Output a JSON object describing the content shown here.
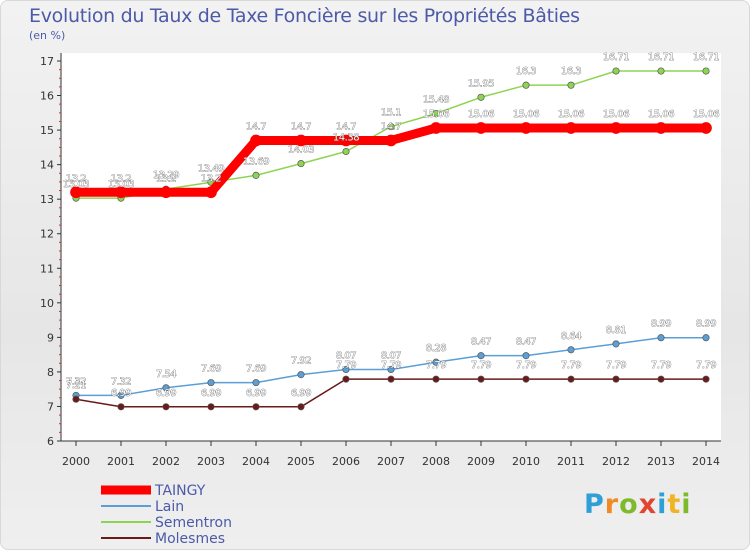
{
  "chart_data": {
    "type": "line",
    "title": "Evolution du Taux de Taxe Foncière sur les Propriétés Bâties",
    "subtitle": "(en %)",
    "xlabel": "",
    "ylabel": "",
    "x": [
      "2000",
      "2001",
      "2002",
      "2003",
      "2004",
      "2005",
      "2006",
      "2007",
      "2008",
      "2009",
      "2010",
      "2011",
      "2012",
      "2013",
      "2014"
    ],
    "ylim": [
      6,
      17
    ],
    "yticks": [
      "6",
      "7",
      "8",
      "9",
      "10",
      "11",
      "12",
      "13",
      "14",
      "15",
      "16",
      "17"
    ],
    "grid": false,
    "legend_position": "bottom-left",
    "series": [
      {
        "name": "TAINGY",
        "color": "#ff0000",
        "values": [
          13.2,
          13.2,
          13.2,
          13.2,
          14.7,
          14.7,
          14.7,
          14.7,
          15.06,
          15.06,
          15.06,
          15.06,
          15.06,
          15.06,
          15.06
        ],
        "labels": [
          "13.2",
          "13.2",
          "13.2",
          "13.2",
          "14.7",
          "14.7",
          "14.7",
          "14.7",
          "15.06",
          "15.06",
          "15.06",
          "15.06",
          "15.06",
          "15.06",
          "15.06"
        ]
      },
      {
        "name": "Lain",
        "color": "#5b9fd6",
        "values": [
          7.32,
          7.32,
          7.54,
          7.69,
          7.69,
          7.92,
          8.07,
          8.07,
          8.28,
          8.47,
          8.47,
          8.64,
          8.81,
          8.99,
          8.99
        ],
        "labels": [
          "7.32",
          "7.32",
          "7.54",
          "7.69",
          "7.69",
          "7.92",
          "8.07",
          "8.07",
          "8.28",
          "8.47",
          "8.47",
          "8.64",
          "8.81",
          "8.99",
          "8.99"
        ]
      },
      {
        "name": "Sementron",
        "color": "#8ed453",
        "values": [
          13.03,
          13.03,
          13.29,
          13.49,
          13.69,
          14.03,
          14.38,
          15.1,
          15.48,
          15.95,
          16.3,
          16.3,
          16.71,
          16.71,
          16.71
        ],
        "labels": [
          "13.03",
          "13.03",
          "13.29",
          "13.49",
          "13.69",
          "14.03",
          "14.38",
          "15.1",
          "15.48",
          "15.95",
          "16.3",
          "16.3",
          "16.71",
          "16.71",
          "16.71"
        ]
      },
      {
        "name": "Molesmes",
        "color": "#6b1a1a",
        "values": [
          7.21,
          6.99,
          6.99,
          6.99,
          6.99,
          6.99,
          7.79,
          7.79,
          7.79,
          7.79,
          7.79,
          7.79,
          7.79,
          7.79,
          7.79
        ],
        "labels": [
          "7.21",
          "6.99",
          "6.99",
          "6.99",
          "6.99",
          "6.99",
          "7.79",
          "7.79",
          "7.79",
          "7.79",
          "7.79",
          "7.79",
          "7.79",
          "7.79",
          "7.79"
        ]
      }
    ]
  },
  "brand": {
    "letters": [
      "P",
      "r",
      "o",
      "x",
      "i",
      "t",
      "i"
    ]
  }
}
